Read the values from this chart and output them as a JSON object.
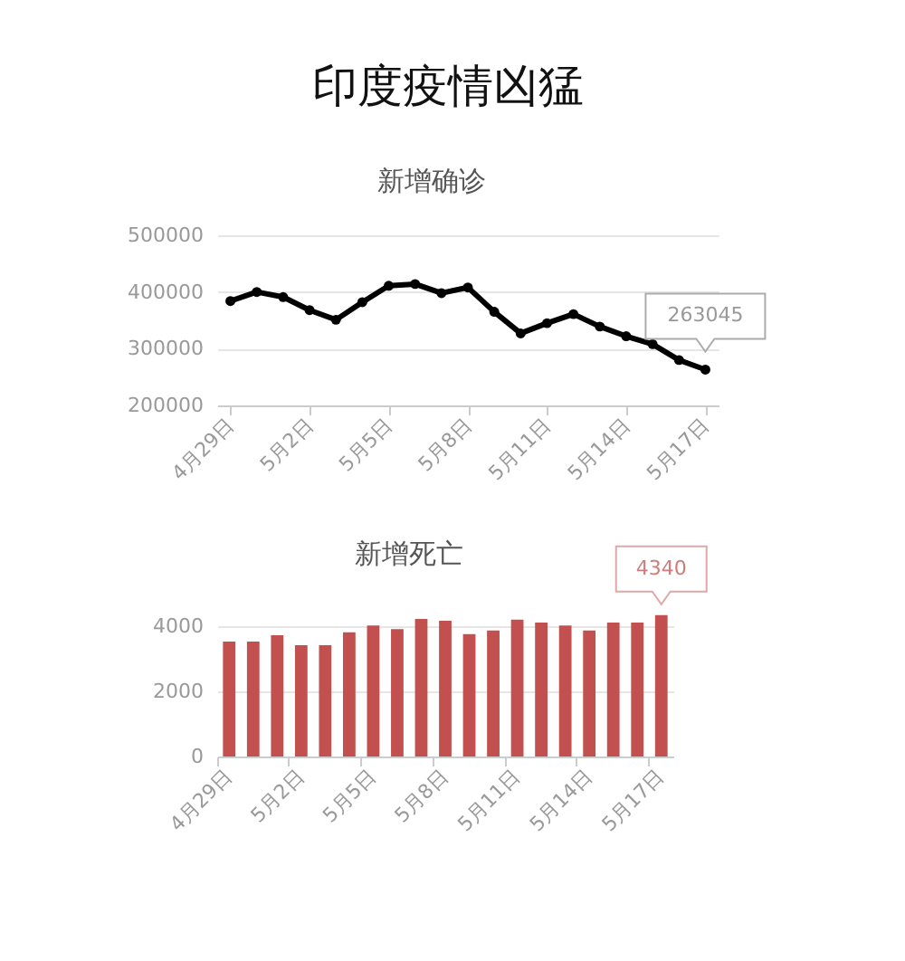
{
  "chart_data": [
    {
      "type": "line",
      "title": "印度疫情凶猛",
      "subtitle": "新增确诊",
      "categories": [
        "4月29日",
        null,
        null,
        "5月2日",
        null,
        null,
        "5月5日",
        null,
        null,
        "5月8日",
        null,
        null,
        "5月11日",
        null,
        null,
        "5月14日",
        null,
        null,
        "5月17日"
      ],
      "values": [
        384000,
        400000,
        391000,
        368000,
        351000,
        382000,
        411000,
        414000,
        398000,
        408000,
        365000,
        327000,
        345000,
        361000,
        339000,
        322000,
        308000,
        280000,
        263045
      ],
      "value_labels": [
        null,
        null,
        null,
        null,
        null,
        null,
        null,
        null,
        null,
        null,
        null,
        null,
        null,
        null,
        null,
        null,
        null,
        null,
        "263045"
      ],
      "color": "#000000",
      "marker": "circle",
      "line_style": "solid",
      "ylim": [
        200000,
        500000
      ],
      "yticks": [
        200000,
        300000,
        400000,
        500000
      ],
      "grid": "y"
    },
    {
      "type": "bar",
      "title": "新增死亡",
      "categories": [
        "4月29日",
        null,
        null,
        "5月2日",
        null,
        null,
        "5月5日",
        null,
        null,
        "5月8日",
        null,
        null,
        "5月11日",
        null,
        null,
        "5月14日",
        null,
        null,
        "5月17日"
      ],
      "values": [
        3530,
        3530,
        3720,
        3420,
        3420,
        3810,
        4020,
        3910,
        4220,
        4170,
        3760,
        3870,
        4200,
        4110,
        4020,
        3870,
        4110,
        4110,
        4340
      ],
      "value_labels": [
        null,
        null,
        null,
        null,
        null,
        null,
        null,
        null,
        null,
        null,
        null,
        null,
        null,
        null,
        null,
        null,
        null,
        null,
        "4340"
      ],
      "color": "#c1504e",
      "ylim": [
        0,
        4500
      ],
      "yticks": [
        0,
        2000,
        4000
      ],
      "grid": "y"
    }
  ]
}
